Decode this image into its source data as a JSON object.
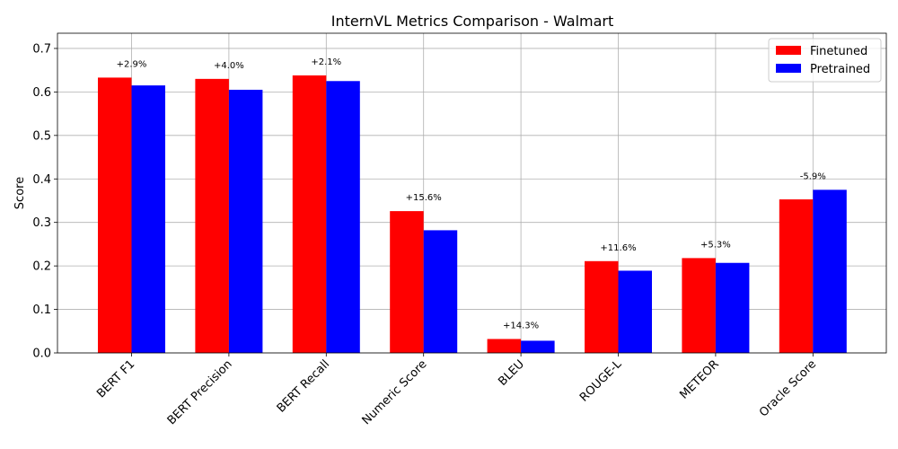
{
  "chart_data": {
    "type": "bar",
    "title": "InternVL Metrics Comparison - Walmart",
    "xlabel": "",
    "ylabel": "Score",
    "ylim": [
      0,
      0.735
    ],
    "yticks": [
      "0.0",
      "0.1",
      "0.2",
      "0.3",
      "0.4",
      "0.5",
      "0.6",
      "0.7"
    ],
    "grid": true,
    "legend_position": "top-right",
    "categories": [
      "BERT F1",
      "BERT Precision",
      "BERT Recall",
      "Numeric Score",
      "BLEU",
      "ROUGE-L",
      "METEOR",
      "Oracle Score"
    ],
    "series": [
      {
        "name": "Finetuned",
        "color": "#ff0000",
        "values": [
          0.633,
          0.63,
          0.638,
          0.326,
          0.032,
          0.211,
          0.218,
          0.353
        ]
      },
      {
        "name": "Pretrained",
        "color": "#0000ff",
        "values": [
          0.615,
          0.605,
          0.625,
          0.282,
          0.028,
          0.189,
          0.207,
          0.375
        ]
      }
    ],
    "annotations": [
      "+2.9%",
      "+4.0%",
      "+2.1%",
      "+15.6%",
      "+14.3%",
      "+11.6%",
      "+5.3%",
      "-5.9%"
    ]
  }
}
